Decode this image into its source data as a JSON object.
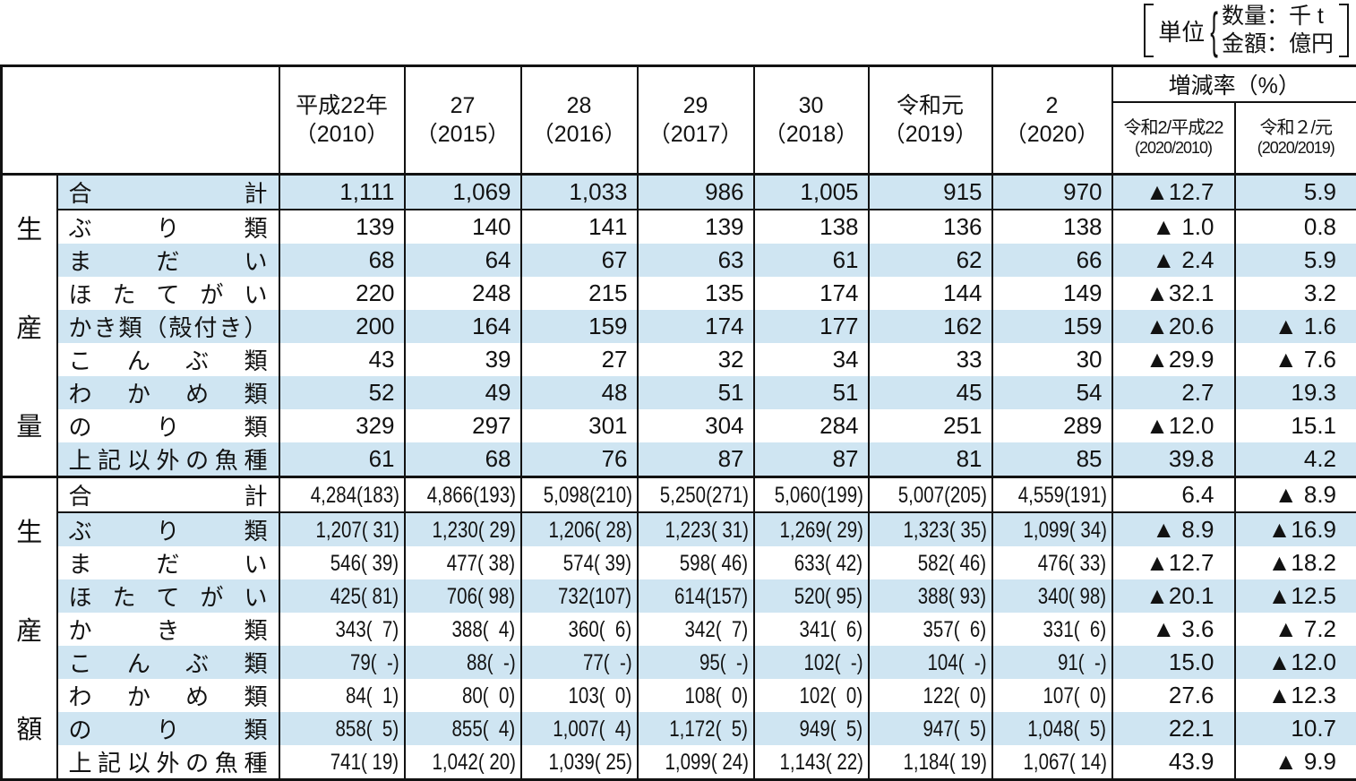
{
  "unit_note": {
    "label": "単位",
    "items": [
      "数量：千 t",
      "金額：億円"
    ]
  },
  "header": {
    "years": [
      {
        "era": "平成22年",
        "year": "（2010）"
      },
      {
        "era": "27",
        "year": "（2015）"
      },
      {
        "era": "28",
        "year": "（2016）"
      },
      {
        "era": "29",
        "year": "（2017）"
      },
      {
        "era": "30",
        "year": "（2018）"
      },
      {
        "era": "令和元",
        "year": "（2019）"
      },
      {
        "era": "2",
        "year": "（2020）"
      }
    ],
    "change_rate_title": "増減率（%）",
    "change_rate_subs": [
      {
        "line1": "令和2/平成22",
        "line2": "(2020/2010)"
      },
      {
        "line1": "令和２/元",
        "line2": "(2020/2019)"
      }
    ]
  },
  "colors": {
    "band_blue": "#cfe5f2",
    "line_black": "#121212"
  },
  "sections": [
    {
      "label": "生産量",
      "band_offset": 0,
      "rows": [
        {
          "label": "合計",
          "values": [
            "1,111",
            "1,069",
            "1,033",
            "986",
            "1,005",
            "915",
            "970",
            "▲12.7",
            "5.9"
          ]
        },
        {
          "label": "ぶり類",
          "values": [
            "139",
            "140",
            "141",
            "139",
            "138",
            "136",
            "138",
            "▲ 1.0",
            "0.8"
          ]
        },
        {
          "label": "まだい",
          "values": [
            "68",
            "64",
            "67",
            "63",
            "61",
            "62",
            "66",
            "▲ 2.4",
            "5.9"
          ]
        },
        {
          "label": "ほたてがい",
          "values": [
            "220",
            "248",
            "215",
            "135",
            "174",
            "144",
            "149",
            "▲32.1",
            "3.2"
          ]
        },
        {
          "label": "かき類（殻付き）",
          "values": [
            "200",
            "164",
            "159",
            "174",
            "177",
            "162",
            "159",
            "▲20.6",
            "▲ 1.6"
          ]
        },
        {
          "label": "こんぶ類",
          "values": [
            "43",
            "39",
            "27",
            "32",
            "34",
            "33",
            "30",
            "▲29.9",
            "▲ 7.6"
          ]
        },
        {
          "label": "わかめ類",
          "values": [
            "52",
            "49",
            "48",
            "51",
            "51",
            "45",
            "54",
            "2.7",
            "19.3"
          ]
        },
        {
          "label": "のり類",
          "values": [
            "329",
            "297",
            "301",
            "304",
            "284",
            "251",
            "289",
            "▲12.0",
            "15.1"
          ]
        },
        {
          "label": "上記以外の魚種",
          "values": [
            "61",
            "68",
            "76",
            "87",
            "87",
            "81",
            "85",
            "39.8",
            "4.2"
          ]
        }
      ]
    },
    {
      "label": "生産額",
      "band_offset": 1,
      "rows": [
        {
          "label": "合計",
          "values": [
            "4,284(183)",
            "4,866(193)",
            "5,098(210)",
            "5,250(271)",
            "5,060(199)",
            "5,007(205)",
            "4,559(191)",
            "6.4",
            "▲ 8.9"
          ]
        },
        {
          "label": "ぶり類",
          "values": [
            "1,207( 31)",
            "1,230( 29)",
            "1,206( 28)",
            "1,223( 31)",
            "1,269( 29)",
            "1,323( 35)",
            "1,099( 34)",
            "▲ 8.9",
            "▲16.9"
          ]
        },
        {
          "label": "まだい",
          "values": [
            "546( 39)",
            "477( 38)",
            "574( 39)",
            "598( 46)",
            "633( 42)",
            "582( 46)",
            "476( 33)",
            "▲12.7",
            "▲18.2"
          ]
        },
        {
          "label": "ほたてがい",
          "values": [
            "425( 81)",
            "706( 98)",
            "732(107)",
            "614(157)",
            "520( 95)",
            "388( 93)",
            "340( 98)",
            "▲20.1",
            "▲12.5"
          ]
        },
        {
          "label": "かき類",
          "values": [
            "343(  7)",
            "388(  4)",
            "360(  6)",
            "342(  7)",
            "341(  6)",
            "357(  6)",
            "331(  6)",
            "▲ 3.6",
            "▲ 7.2"
          ]
        },
        {
          "label": "こんぶ類",
          "values": [
            "79(  -)",
            "88(  -)",
            "77(  -)",
            "95(  -)",
            "102(  -)",
            "104(  -)",
            "91(  -)",
            "15.0",
            "▲12.0"
          ]
        },
        {
          "label": "わかめ類",
          "values": [
            "84(  1)",
            "80(  0)",
            "103(  0)",
            "108(  0)",
            "102(  0)",
            "122(  0)",
            "107(  0)",
            "27.6",
            "▲12.3"
          ]
        },
        {
          "label": "のり類",
          "values": [
            "858(  5)",
            "855(  4)",
            "1,007(  4)",
            "1,172(  5)",
            "949(  5)",
            "947(  5)",
            "1,048(  5)",
            "22.1",
            "10.7"
          ]
        },
        {
          "label": "上記以外の魚種",
          "values": [
            "741( 19)",
            "1,042( 20)",
            "1,039( 25)",
            "1,099( 24)",
            "1,143( 22)",
            "1,184( 19)",
            "1,067( 14)",
            "43.9",
            "▲ 9.9"
          ]
        }
      ]
    }
  ]
}
